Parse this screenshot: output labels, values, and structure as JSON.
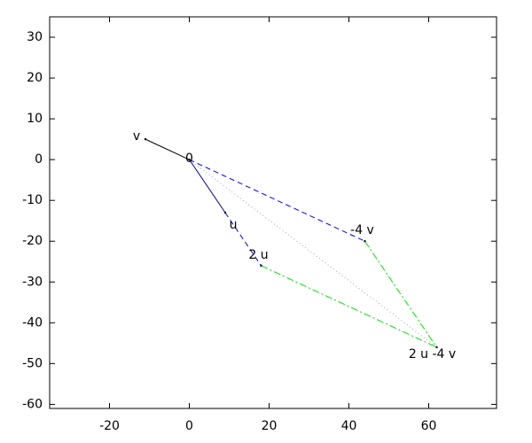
{
  "chart_data": {
    "type": "vector",
    "xlim": [
      -35,
      77
    ],
    "ylim": [
      -61,
      35
    ],
    "xticks": [
      -20,
      0,
      20,
      40,
      60
    ],
    "yticks": [
      30,
      20,
      10,
      0,
      -10,
      -20,
      -30,
      -40,
      -50,
      -60
    ],
    "grid": false,
    "series": [
      {
        "color": "#000000",
        "style": "solid",
        "x": [
          0,
          -11
        ],
        "values": [
          0,
          5
        ]
      },
      {
        "color": "#000080",
        "style": "solid",
        "x": [
          0,
          9
        ],
        "values": [
          0,
          -13
        ]
      },
      {
        "color": "#0000ff",
        "style": "dashed",
        "x": [
          9,
          18
        ],
        "values": [
          -13,
          -26
        ]
      },
      {
        "color": "#0000ff",
        "style": "dashed",
        "x": [
          0,
          44
        ],
        "values": [
          0,
          -20
        ]
      },
      {
        "color": "#00e000",
        "style": "dashdot",
        "x": [
          44,
          62
        ],
        "values": [
          -20,
          -46
        ]
      },
      {
        "color": "#00e000",
        "style": "dashdot",
        "x": [
          18,
          62
        ],
        "values": [
          -26,
          -46
        ]
      },
      {
        "color": "#a0a0a0",
        "style": "dotted",
        "x": [
          0,
          62
        ],
        "values": [
          0,
          -46
        ]
      }
    ],
    "points": [
      {
        "label": "v",
        "x": -11,
        "y": 5
      },
      {
        "label": "0",
        "x": 0,
        "y": 0
      },
      {
        "label": "u",
        "x": 9,
        "y": -13
      },
      {
        "label": "2 u",
        "x": 18,
        "y": -26
      },
      {
        "label": "-4 v",
        "x": 44,
        "y": -20
      },
      {
        "label": "2 u -4 v",
        "x": 62,
        "y": -46
      }
    ]
  }
}
